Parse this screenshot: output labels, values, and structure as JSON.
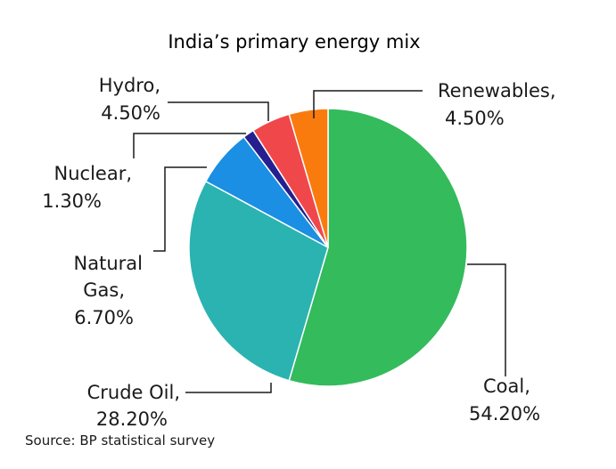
{
  "chart_data": {
    "type": "pie",
    "title": "India’s primary energy mix",
    "source": "Source: BP statistical survey",
    "slices": [
      {
        "key": "coal",
        "name": "Coal,",
        "value": 54.2,
        "label": "54.20%",
        "color": "#33bb5c"
      },
      {
        "key": "crude-oil",
        "name": "Crude Oil,",
        "value": 28.2,
        "label": "28.20%",
        "color": "#2ab3b0"
      },
      {
        "key": "natural-gas",
        "name": "Natural Gas,",
        "name_lines": [
          "Natural",
          "Gas,"
        ],
        "value": 6.7,
        "label": "6.70%",
        "color": "#1a8fe3"
      },
      {
        "key": "nuclear",
        "name": "Nuclear,",
        "value": 1.3,
        "label": "1.30%",
        "color": "#24208f"
      },
      {
        "key": "hydro",
        "name": "Hydro,",
        "value": 4.5,
        "label": "4.50%",
        "color": "#f0474b"
      },
      {
        "key": "renewables",
        "name": "Renewables,",
        "value": 4.5,
        "label": "4.50%",
        "color": "#f97b0e"
      }
    ],
    "start": "12 o'clock",
    "direction": "clockwise",
    "legend": "none (direct labels with leader lines)"
  }
}
